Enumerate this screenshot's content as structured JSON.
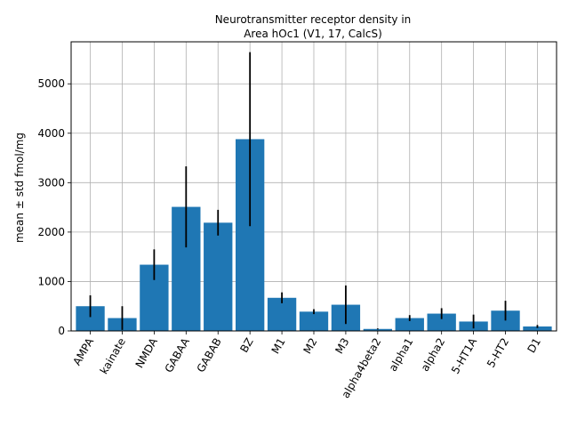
{
  "chart_data": {
    "type": "bar",
    "title_line1": "Neurotransmitter receptor density in",
    "title_line2": "Area hOc1 (V1, 17, CalcS)",
    "xlabel": "",
    "ylabel": "mean ± std fmol/mg",
    "ylim": [
      0,
      5850
    ],
    "yticks": [
      0,
      1000,
      2000,
      3000,
      4000,
      5000
    ],
    "grid": true,
    "bar_color": "#1f77b4",
    "categories": [
      "AMPA",
      "kainate",
      "NMDA",
      "GABAA",
      "GABAB",
      "BZ",
      "M1",
      "M2",
      "M3",
      "alpha4beta2",
      "alpha1",
      "alpha2",
      "5-HT1A",
      "5-HT2",
      "D1"
    ],
    "values": [
      500,
      260,
      1340,
      2510,
      2190,
      3880,
      670,
      390,
      530,
      40,
      260,
      350,
      190,
      410,
      90
    ],
    "errors": [
      220,
      240,
      310,
      820,
      260,
      1760,
      110,
      50,
      390,
      10,
      60,
      110,
      140,
      200,
      30
    ]
  }
}
